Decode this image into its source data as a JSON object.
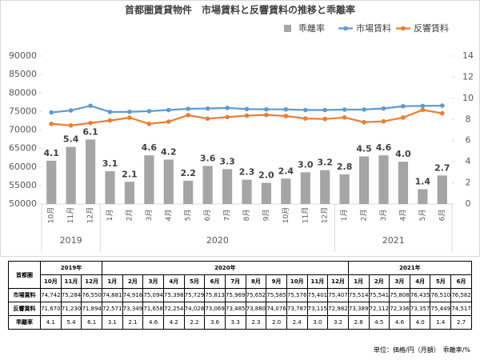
{
  "chart_data": {
    "type": "bar_line",
    "title": "首都圏賃貸物件　市場賃料と反響賃料の推移と乖離率",
    "categories": [
      "10月",
      "11月",
      "12月",
      "1月",
      "2月",
      "3月",
      "4月",
      "5月",
      "6月",
      "7月",
      "8月",
      "9月",
      "10月",
      "11月",
      "12月",
      "1月",
      "2月",
      "3月",
      "4月",
      "5月",
      "6月"
    ],
    "x_groups": [
      {
        "label": "2019",
        "count": 3
      },
      {
        "label": "2020",
        "count": 12
      },
      {
        "label": "2021",
        "count": 6
      }
    ],
    "series": [
      {
        "name": "乖離率",
        "type": "bar",
        "axis": "y2",
        "color": "#a5a5a5",
        "values": [
          4.1,
          5.4,
          6.1,
          3.1,
          2.1,
          4.6,
          4.2,
          2.2,
          3.6,
          3.3,
          2.3,
          2.0,
          2.4,
          3.0,
          3.2,
          2.8,
          4.5,
          4.6,
          4.0,
          1.4,
          2.7
        ],
        "value_labels": [
          "4.1",
          "5.4",
          "6.1",
          "3.1",
          "2.1",
          "4.6",
          "4.2",
          "2.2",
          "3.6",
          "3.3",
          "2.3",
          "2.0",
          "2.4",
          "3.0",
          "3.2",
          "2.8",
          "4.5",
          "4.6",
          "4.0",
          "1.4",
          "2.7"
        ]
      },
      {
        "name": "市場賃料",
        "type": "line",
        "color": "#5b9bd5",
        "values": [
          74742,
          75284,
          76550,
          74881,
          74916,
          75094,
          75398,
          75729,
          75813,
          75969,
          75652,
          75585,
          75576,
          75401,
          75407,
          75514,
          75541,
          75808,
          76435,
          76510,
          76582
        ]
      },
      {
        "name": "反響賃料",
        "type": "line",
        "color": "#ed7d31",
        "values": [
          71670,
          71230,
          71894,
          72571,
          73349,
          71658,
          72254,
          74028,
          73069,
          73485,
          73880,
          74076,
          73787,
          73115,
          72982,
          73389,
          72112,
          72336,
          73357,
          75449,
          74517
        ]
      }
    ],
    "ylim": [
      50000,
      90000
    ],
    "yticks": [
      50000,
      55000,
      60000,
      65000,
      70000,
      75000,
      80000,
      85000,
      90000
    ],
    "y2lim": [
      0,
      14
    ],
    "y2ticks": [
      0,
      2,
      4,
      6,
      8,
      10,
      12,
      14
    ],
    "grid": false,
    "legend": "top-right"
  },
  "table": {
    "corner": "首都圏",
    "years": [
      {
        "label": "2019年",
        "count": 3
      },
      {
        "label": "2020年",
        "count": 12
      },
      {
        "label": "2021年",
        "count": 6
      }
    ],
    "rows": [
      {
        "label": "市場賃料",
        "cells": [
          "74,742",
          "75,284",
          "76,550",
          "74,881",
          "74,916",
          "75,094",
          "75,398",
          "75,729",
          "75,813",
          "75,969",
          "75,652",
          "75,585",
          "75,576",
          "75,401",
          "75,407",
          "75,514",
          "75,541",
          "75,808",
          "76,435",
          "76,510",
          "76,582"
        ]
      },
      {
        "label": "反響賃料",
        "cells": [
          "71,670",
          "71,230",
          "71,894",
          "72,571",
          "73,349",
          "71,658",
          "72,254",
          "74,028",
          "73,069",
          "73,485",
          "73,880",
          "74,076",
          "73,787",
          "73,115",
          "72,982",
          "73,389",
          "72,112",
          "72,336",
          "73,357",
          "75,449",
          "74,517"
        ]
      },
      {
        "label": "乖離率",
        "cells": [
          "4.1",
          "5.4",
          "6.1",
          "3.1",
          "2.1",
          "4.6",
          "4.2",
          "2.2",
          "3.6",
          "3.3",
          "2.3",
          "2.0",
          "2.4",
          "3.0",
          "3.2",
          "2.8",
          "4.5",
          "4.6",
          "4.0",
          "1.4",
          "2.7"
        ]
      }
    ],
    "note": "単位：価格/円（月額）　乖離率/%"
  }
}
